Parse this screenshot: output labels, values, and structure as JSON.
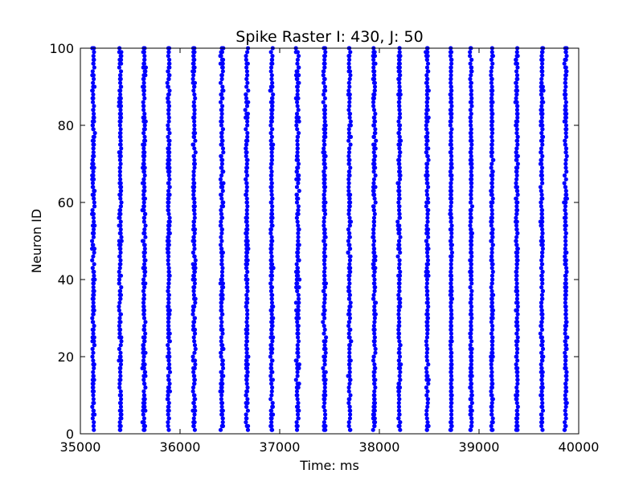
{
  "chart_data": {
    "type": "scatter",
    "title": "Spike Raster I: 430, J: 50",
    "xlabel": "Time: ms",
    "ylabel": "Neuron ID",
    "xlim": [
      35000,
      40000
    ],
    "ylim": [
      0,
      100
    ],
    "xticks": [
      35000,
      36000,
      37000,
      38000,
      39000,
      40000
    ],
    "yticks": [
      0,
      20,
      40,
      60,
      80,
      100
    ],
    "grid": false,
    "legend": "none",
    "marker_color": "#0000ff",
    "neuron_id_range": [
      1,
      100
    ],
    "spike_bursts_ms": [
      {
        "center": 35130,
        "spread": 18
      },
      {
        "center": 35400,
        "spread": 18
      },
      {
        "center": 35640,
        "spread": 20
      },
      {
        "center": 35885,
        "spread": 18
      },
      {
        "center": 36140,
        "spread": 20
      },
      {
        "center": 36420,
        "spread": 22
      },
      {
        "center": 36670,
        "spread": 18
      },
      {
        "center": 36920,
        "spread": 18
      },
      {
        "center": 37180,
        "spread": 24
      },
      {
        "center": 37450,
        "spread": 18
      },
      {
        "center": 37700,
        "spread": 18
      },
      {
        "center": 37950,
        "spread": 18
      },
      {
        "center": 38200,
        "spread": 18
      },
      {
        "center": 38480,
        "spread": 18
      },
      {
        "center": 38720,
        "spread": 12
      },
      {
        "center": 38920,
        "spread": 14
      },
      {
        "center": 39130,
        "spread": 16
      },
      {
        "center": 39380,
        "spread": 18
      },
      {
        "center": 39630,
        "spread": 18
      },
      {
        "center": 39870,
        "spread": 20
      }
    ]
  }
}
